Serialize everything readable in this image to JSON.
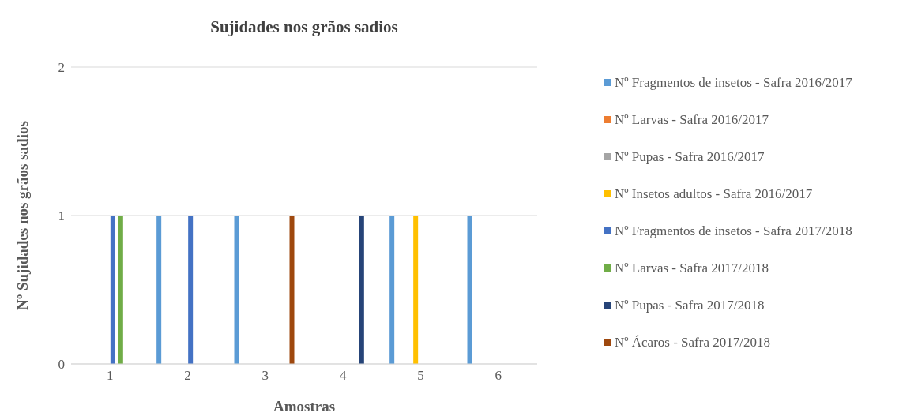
{
  "chart_data": {
    "type": "bar",
    "title": "Sujidades nos grãos sadios",
    "xlabel": "Amostras",
    "ylabel": "Nº Sujidades nos grãos sadios",
    "categories": [
      "1",
      "2",
      "3",
      "4",
      "5",
      "6"
    ],
    "series": [
      {
        "name": "Nº Fragmentos de insetos - Safra 2016/2017",
        "color": "#5b9bd5",
        "values": [
          0,
          1,
          1,
          0,
          1,
          1
        ]
      },
      {
        "name": "Nº Larvas - Safra 2016/2017",
        "color": "#ed7d31",
        "values": [
          0,
          0,
          0,
          0,
          0,
          0
        ]
      },
      {
        "name": "Nº Pupas - Safra 2016/2017",
        "color": "#a5a5a5",
        "values": [
          0,
          0,
          0,
          0,
          0,
          0
        ]
      },
      {
        "name": "Nº Insetos adultos - Safra 2016/2017",
        "color": "#ffc000",
        "values": [
          0,
          0,
          0,
          0,
          1,
          0
        ]
      },
      {
        "name": "Nº Fragmentos de insetos - Safra 2017/2018",
        "color": "#4472c4",
        "values": [
          1,
          1,
          0,
          0,
          0,
          0
        ]
      },
      {
        "name": "Nº Larvas - Safra 2017/2018",
        "color": "#70ad47",
        "values": [
          1,
          0,
          0,
          0,
          0,
          0
        ]
      },
      {
        "name": "Nº Pupas - Safra 2017/2018",
        "color": "#264478",
        "values": [
          0,
          0,
          0,
          1,
          0,
          0
        ]
      },
      {
        "name": "Nº Ácaros - Safra 2017/2018",
        "color": "#9e480e",
        "values": [
          0,
          0,
          1,
          0,
          0,
          0
        ]
      }
    ],
    "ylim": [
      0,
      2
    ],
    "yticks": [
      0,
      1,
      2
    ],
    "grid": "y",
    "legend": "right"
  }
}
